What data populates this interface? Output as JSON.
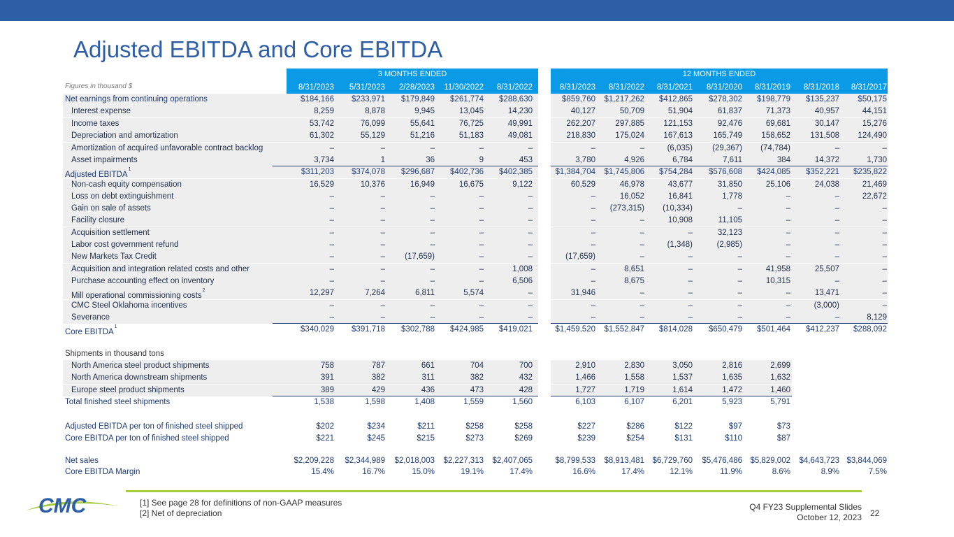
{
  "title": "Adjusted EBITDA and Core EBITDA",
  "header": {
    "three_months_label": "3 MONTHS ENDED",
    "twelve_months_label": "12 MONTHS ENDED",
    "figures_note": "Figures in thousand $",
    "dates": [
      "8/31/2023",
      "5/31/2023",
      "2/28/2023",
      "11/30/2022",
      "8/31/2022",
      "8/31/2023",
      "8/31/2022",
      "8/31/2021",
      "8/31/2020",
      "8/31/2019",
      "8/31/2018",
      "8/31/2017"
    ]
  },
  "rows": [
    {
      "label": "Net earnings from continuing operations",
      "indent": false,
      "values": [
        "$184,166",
        "$233,971",
        "$179,849",
        "$261,774",
        "$288,630",
        "$859,760",
        "$1,217,262",
        "$412,865",
        "$278,302",
        "$198,779",
        "$135,237",
        "$50,175"
      ]
    },
    {
      "label": "Interest expense",
      "indent": true,
      "values": [
        "8,259",
        "8,878",
        "9,945",
        "13,045",
        "14,230",
        "40,127",
        "50,709",
        "51,904",
        "61,837",
        "71,373",
        "40,957",
        "44,151"
      ]
    },
    {
      "label": "Income taxes",
      "indent": true,
      "values": [
        "53,742",
        "76,099",
        "55,641",
        "76,725",
        "49,991",
        "262,207",
        "297,885",
        "121,153",
        "92,476",
        "69,681",
        "30,147",
        "15,276"
      ]
    },
    {
      "label": "Depreciation and amortization",
      "indent": true,
      "values": [
        "61,302",
        "55,129",
        "51,216",
        "51,183",
        "49,081",
        "218,830",
        "175,024",
        "167,613",
        "165,749",
        "158,652",
        "131,508",
        "124,490"
      ]
    },
    {
      "label": "Amortization of acquired unfavorable contract backlog",
      "indent": true,
      "values": [
        "–",
        "–",
        "–",
        "–",
        "–",
        "–",
        "–",
        "(6,035)",
        "(29,367)",
        "(74,784)",
        "–",
        "–"
      ]
    },
    {
      "label": "Asset impairments",
      "indent": true,
      "values": [
        "3,734",
        "1",
        "36",
        "9",
        "453",
        "3,780",
        "4,926",
        "6,784",
        "7,611",
        "384",
        "14,372",
        "1,730"
      ]
    },
    {
      "label": "Adjusted EBITDA",
      "sup": "1",
      "indent": false,
      "values": [
        "$311,203",
        "$374,078",
        "$296,687",
        "$402,736",
        "$402,385",
        "$1,384,704",
        "$1,745,806",
        "$754,284",
        "$576,608",
        "$424,085",
        "$352,221",
        "$235,822"
      ]
    },
    {
      "label": "Non-cash equity compensation",
      "indent": true,
      "values": [
        "16,529",
        "10,376",
        "16,949",
        "16,675",
        "9,122",
        "60,529",
        "46,978",
        "43,677",
        "31,850",
        "25,106",
        "24,038",
        "21,469"
      ]
    },
    {
      "label": "Loss on debt extinguishment",
      "indent": true,
      "values": [
        "–",
        "–",
        "–",
        "–",
        "–",
        "–",
        "16,052",
        "16,841",
        "1,778",
        "–",
        "–",
        "22,672"
      ]
    },
    {
      "label": "Gain on sale of assets",
      "indent": true,
      "values": [
        "–",
        "–",
        "–",
        "–",
        "–",
        "–",
        "(273,315)",
        "(10,334)",
        "–",
        "–",
        "–",
        "–"
      ]
    },
    {
      "label": "Facility closure",
      "indent": true,
      "values": [
        "–",
        "–",
        "–",
        "–",
        "–",
        "–",
        "–",
        "10,908",
        "11,105",
        "–",
        "–",
        "–"
      ]
    },
    {
      "label": "Acquisition settlement",
      "indent": true,
      "values": [
        "–",
        "–",
        "–",
        "–",
        "–",
        "–",
        "–",
        "–",
        "32,123",
        "–",
        "–",
        "–"
      ]
    },
    {
      "label": "Labor cost government refund",
      "indent": true,
      "values": [
        "–",
        "–",
        "–",
        "–",
        "–",
        "–",
        "–",
        "(1,348)",
        "(2,985)",
        "–",
        "–",
        "–"
      ]
    },
    {
      "label": "New Markets Tax Credit",
      "indent": true,
      "values": [
        "–",
        "–",
        "(17,659)",
        "–",
        "–",
        "(17,659)",
        "–",
        "–",
        "–",
        "–",
        "–",
        "–"
      ]
    },
    {
      "label": "Acquisition and integration related costs and other",
      "indent": true,
      "values": [
        "–",
        "–",
        "–",
        "–",
        "1,008",
        "–",
        "8,651",
        "–",
        "–",
        "41,958",
        "25,507",
        "–"
      ]
    },
    {
      "label": "Purchase accounting effect on inventory",
      "indent": true,
      "values": [
        "–",
        "–",
        "–",
        "–",
        "6,506",
        "–",
        "8,675",
        "–",
        "–",
        "10,315",
        "–",
        "–"
      ]
    },
    {
      "label": "Mill operational commissioning costs",
      "sup": "2",
      "indent": true,
      "values": [
        "12,297",
        "7,264",
        "6,811",
        "5,574",
        "–",
        "31,946",
        "–",
        "–",
        "–",
        "–",
        "13,471",
        "–"
      ]
    },
    {
      "label": "CMC Steel Oklahoma incentives",
      "indent": true,
      "values": [
        "–",
        "–",
        "–",
        "–",
        "–",
        "–",
        "–",
        "–",
        "–",
        "–",
        "(3,000)",
        "–"
      ]
    },
    {
      "label": "Severance",
      "indent": true,
      "values": [
        "–",
        "–",
        "–",
        "–",
        "–",
        "–",
        "–",
        "–",
        "–",
        "–",
        "–",
        "8,129"
      ]
    },
    {
      "label": "Core EBITDA",
      "sup": "1",
      "indent": false,
      "values": [
        "$340,029",
        "$391,718",
        "$302,788",
        "$424,985",
        "$419,021",
        "$1,459,520",
        "$1,552,847",
        "$814,028",
        "$650,479",
        "$501,464",
        "$412,237",
        "$288,092"
      ]
    }
  ],
  "shipments": {
    "heading": "Shipments in thousand tons",
    "rows": [
      {
        "label": "North America steel product shipments",
        "values": [
          "758",
          "787",
          "661",
          "704",
          "700",
          "2,910",
          "2,830",
          "3,050",
          "2,816",
          "2,699"
        ]
      },
      {
        "label": "North America downstream shipments",
        "values": [
          "391",
          "382",
          "311",
          "382",
          "432",
          "1,466",
          "1,558",
          "1,537",
          "1,635",
          "1,632"
        ]
      },
      {
        "label": "Europe steel product shipments",
        "values": [
          "389",
          "429",
          "436",
          "473",
          "428",
          "1,727",
          "1,719",
          "1,614",
          "1,472",
          "1,460"
        ]
      },
      {
        "label": "Total finished steel shipments",
        "values": [
          "1,538",
          "1,598",
          "1,408",
          "1,559",
          "1,560",
          "6,103",
          "6,107",
          "6,201",
          "5,923",
          "5,791"
        ]
      }
    ]
  },
  "per_ton": [
    {
      "label": "Adjusted EBITDA per ton of finished steel shipped",
      "values": [
        "$202",
        "$234",
        "$211",
        "$258",
        "$258",
        "$227",
        "$286",
        "$122",
        "$97",
        "$73"
      ]
    },
    {
      "label": "Core EBITDA per ton of finished steel shipped",
      "values": [
        "$221",
        "$245",
        "$215",
        "$273",
        "$269",
        "$239",
        "$254",
        "$131",
        "$110",
        "$87"
      ]
    }
  ],
  "sales": [
    {
      "label": "Net sales",
      "values": [
        "$2,209,228",
        "$2,344,989",
        "$2,018,003",
        "$2,227,313",
        "$2,407,065",
        "$8,799,533",
        "$8,913,481",
        "$6,729,760",
        "$5,476,486",
        "$5,829,002",
        "$4,643,723",
        "$3,844,069"
      ]
    },
    {
      "label": "Core EBITDA Margin",
      "values": [
        "15.4%",
        "16.7%",
        "15.0%",
        "19.1%",
        "17.4%",
        "16.6%",
        "17.4%",
        "12.1%",
        "11.9%",
        "8.6%",
        "8.9%",
        "7.5%"
      ]
    }
  ],
  "footnotes": [
    "[1] See page 28 for definitions of non-GAAP measures",
    "[2] Net of depreciation"
  ],
  "footer": {
    "slides_title": "Q4 FY23 Supplemental Slides",
    "date": "October 12, 2023",
    "page": "22"
  },
  "logo": {
    "text": "CMC"
  },
  "colors": {
    "brand_blue": "#2e5fa6",
    "header_blue": "#0b9be6",
    "accent_green": "#a6cc3f",
    "shade": "#eeeeee"
  }
}
